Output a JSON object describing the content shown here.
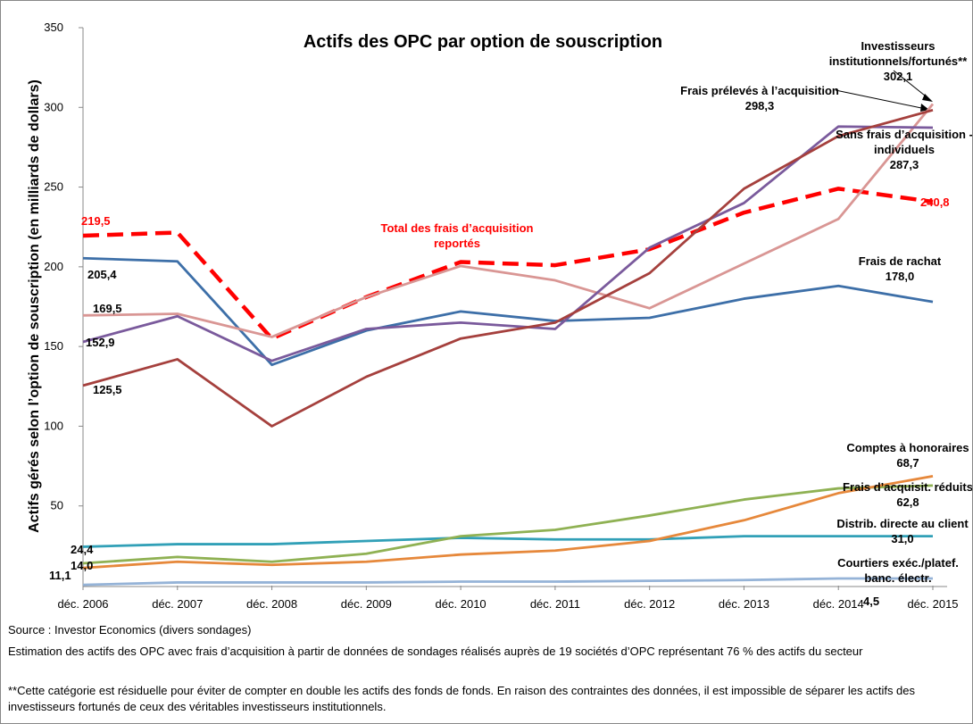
{
  "chart_data": {
    "type": "line",
    "title": "Actifs des OPC par option de souscription",
    "y_label": "Actifs gérés selon l’option de souscription (en milliards de dollars)",
    "categories": [
      "déc. 2006",
      "déc. 2007",
      "déc. 2008",
      "déc. 2009",
      "déc. 2010",
      "déc. 2011",
      "déc. 2012",
      "déc. 2013",
      "déc. 2014",
      "déc. 2015"
    ],
    "ylim": [
      0,
      350
    ],
    "yticks": [
      50,
      100,
      150,
      200,
      250,
      300,
      350
    ],
    "grid": false,
    "series": [
      {
        "name": "Frais de rachat",
        "color": "#3d6fa8",
        "values": [
          205.4,
          203.4,
          138.5,
          160,
          172,
          166,
          168,
          180,
          188,
          178.0
        ],
        "value_labels": [
          "205,4",
          null,
          null,
          null,
          null,
          null,
          null,
          null,
          null,
          "178,0"
        ]
      },
      {
        "name": "Total des frais d’acquisition reportés",
        "color": "#ff0000",
        "dashed": true,
        "values": [
          219.5,
          221.5,
          155,
          181,
          203,
          201,
          211,
          234,
          249,
          240.8
        ],
        "value_labels": [
          "219,5",
          null,
          null,
          null,
          null,
          null,
          null,
          null,
          null,
          "240,8"
        ]
      },
      {
        "name": "Investisseurs institutionnels/fortunés**",
        "color": "#d99694",
        "values": [
          169.5,
          170.5,
          156,
          181,
          200.5,
          191.5,
          174,
          202,
          230,
          302.1
        ],
        "value_labels": [
          "169,5",
          null,
          null,
          null,
          null,
          null,
          null,
          null,
          null,
          "302,1"
        ]
      },
      {
        "name": "Sans frais d’acquisition - individuels",
        "color": "#7a5a9c",
        "values": [
          152.9,
          169,
          141,
          161,
          165,
          161,
          212,
          240,
          288,
          287.3
        ],
        "value_labels": [
          "152,9",
          null,
          null,
          null,
          null,
          null,
          null,
          null,
          null,
          "287,3"
        ]
      },
      {
        "name": "Frais prélevés à l’acquisition",
        "color": "#a5403d",
        "values": [
          125.5,
          142,
          100,
          131,
          155,
          165,
          196,
          249,
          282,
          298.3
        ],
        "value_labels": [
          "125,5",
          null,
          null,
          null,
          null,
          null,
          null,
          null,
          null,
          "298,3"
        ]
      },
      {
        "name": "Distrib. directe au client",
        "color": "#31a0b7",
        "values": [
          24.4,
          26,
          26,
          28,
          30,
          29,
          29,
          31,
          31,
          31.0
        ],
        "value_labels": [
          "24,4",
          null,
          null,
          null,
          null,
          null,
          null,
          null,
          null,
          "31,0"
        ]
      },
      {
        "name": "Frais d’acquisit. réduits",
        "color": "#8fb153",
        "values": [
          14.0,
          18,
          15,
          20,
          31,
          35,
          44,
          54,
          61,
          62.8
        ],
        "value_labels": [
          "14,0",
          null,
          null,
          null,
          null,
          null,
          null,
          null,
          null,
          "62,8"
        ]
      },
      {
        "name": "Comptes à honoraires",
        "color": "#e6883b",
        "values": [
          11.1,
          15,
          13,
          15,
          19.5,
          22,
          28,
          41,
          58,
          68.7
        ],
        "value_labels": [
          "11,1",
          null,
          null,
          null,
          null,
          null,
          null,
          null,
          null,
          "68,7"
        ]
      },
      {
        "name": "Courtiers exéc./platef. banc. électr.",
        "color": "#95b3d7",
        "values": [
          0.5,
          2,
          2,
          2,
          2.5,
          2.5,
          3,
          3.5,
          4.5,
          4.5
        ],
        "value_labels": [
          null,
          null,
          null,
          null,
          null,
          null,
          null,
          null,
          null,
          "4,5"
        ]
      }
    ],
    "notes": [
      "Source : Investor Economics (divers sondages)",
      "Estimation des actifs des OPC avec frais d’acquisition à partir de données de sondages réalisés auprès de 19 sociétés d’OPC représentant 76 % des actifs du secteur",
      "**Cette catégorie est résiduelle pour éviter de compter en double les actifs des fonds de fonds. En raison des contraintes des données, il est impossible de séparer les actifs des investisseurs fortunés de ceux des véritables investisseurs institutionnels."
    ]
  }
}
